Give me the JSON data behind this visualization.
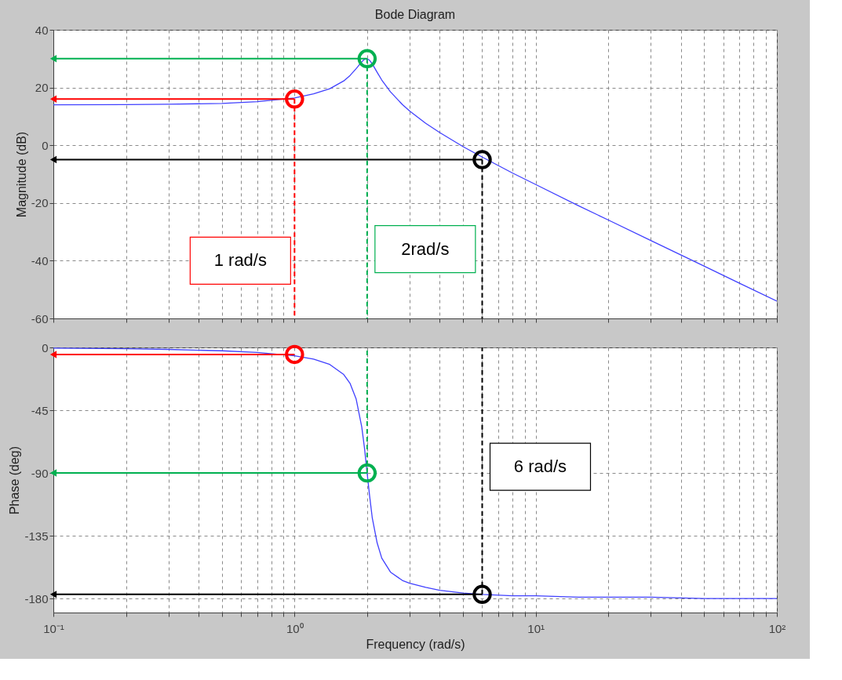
{
  "chart_data": [
    {
      "type": "line",
      "title": "Bode Diagram",
      "ylabel": "Magnitude (dB)",
      "log": "x",
      "grid": true,
      "tick_labels": "y",
      "xlim": [
        0.1,
        100
      ],
      "xticks": [
        {
          "value": 0.1,
          "label": null
        },
        {
          "value": 0.2,
          "label": null
        },
        {
          "value": 0.3,
          "label": null
        },
        {
          "value": 0.4,
          "label": null
        },
        {
          "value": 0.5,
          "label": null
        },
        {
          "value": 0.6,
          "label": null
        },
        {
          "value": 0.7,
          "label": null
        },
        {
          "value": 0.8,
          "label": null
        },
        {
          "value": 0.9,
          "label": null
        },
        {
          "value": 1,
          "label": null
        },
        {
          "value": 2,
          "label": null
        },
        {
          "value": 3,
          "label": null
        },
        {
          "value": 4,
          "label": null
        },
        {
          "value": 5,
          "label": null
        },
        {
          "value": 6,
          "label": null
        },
        {
          "value": 7,
          "label": null
        },
        {
          "value": 8,
          "label": null
        },
        {
          "value": 9,
          "label": null
        },
        {
          "value": 10,
          "label": null
        },
        {
          "value": 20,
          "label": null
        },
        {
          "value": 30,
          "label": null
        },
        {
          "value": 40,
          "label": null
        },
        {
          "value": 50,
          "label": null
        },
        {
          "value": 60,
          "label": null
        },
        {
          "value": 70,
          "label": null
        },
        {
          "value": 80,
          "label": null
        },
        {
          "value": 90,
          "label": null
        },
        {
          "value": 100,
          "label": null
        }
      ],
      "ylim": [
        -60,
        40
      ],
      "yticks": [
        -60,
        -40,
        -20,
        0,
        20,
        40
      ],
      "series": [
        {
          "color": "#4040ff",
          "x": [
            0.1,
            0.2,
            0.3,
            0.5,
            0.7,
            1,
            1.2,
            1.4,
            1.6,
            1.7,
            1.8,
            1.9,
            1.95,
            2,
            2.05,
            2.1,
            2.2,
            2.3,
            2.5,
            2.8,
            3,
            3.5,
            4,
            5,
            6,
            8,
            10,
            15,
            20,
            30,
            50,
            70,
            100
          ],
          "values": [
            14.0,
            14.1,
            14.2,
            14.5,
            15.1,
            16.4,
            17.8,
            19.6,
            22.3,
            24.2,
            26.5,
            28.9,
            29.8,
            30.0,
            29.4,
            28.2,
            25.3,
            22.6,
            18.5,
            14.1,
            11.9,
            7.6,
            4.4,
            -0.5,
            -4.1,
            -9.6,
            -13.6,
            -20.9,
            -25.9,
            -33.0,
            -41.9,
            -47.8,
            -54.0
          ]
        },
        {
          "type": "scatter",
          "marker": "circle",
          "x": [
            1,
            2,
            6
          ],
          "values": [
            16,
            30,
            -5
          ],
          "colors": [
            "#ff0000",
            "#00b050",
            "#000000"
          ]
        }
      ],
      "ref_lines": [
        {
          "axis": "x",
          "value": 1,
          "label": "1 rad/s",
          "color": "#ff0000",
          "line_style": "dashed"
        },
        {
          "axis": "x",
          "value": 2,
          "label": "2rad/s",
          "color": "#00b050",
          "line_style": "dashed"
        },
        {
          "axis": "x",
          "value": 6,
          "color": "#000000",
          "line_style": "dashed"
        }
      ]
    },
    {
      "type": "line",
      "xlabel": "Frequency  (rad/s)",
      "ylabel": "Phase (deg)",
      "log": "x",
      "grid": true,
      "xlim": [
        0.1,
        100
      ],
      "xticks": [
        {
          "value": 0.1,
          "label": "10⁻¹"
        },
        {
          "value": 0.2,
          "label": null
        },
        {
          "value": 0.3,
          "label": null
        },
        {
          "value": 0.4,
          "label": null
        },
        {
          "value": 0.5,
          "label": null
        },
        {
          "value": 0.6,
          "label": null
        },
        {
          "value": 0.7,
          "label": null
        },
        {
          "value": 0.8,
          "label": null
        },
        {
          "value": 0.9,
          "label": null
        },
        {
          "value": 1,
          "label": "10⁰"
        },
        {
          "value": 2,
          "label": null
        },
        {
          "value": 3,
          "label": null
        },
        {
          "value": 4,
          "label": null
        },
        {
          "value": 5,
          "label": null
        },
        {
          "value": 6,
          "label": null
        },
        {
          "value": 7,
          "label": null
        },
        {
          "value": 8,
          "label": null
        },
        {
          "value": 9,
          "label": null
        },
        {
          "value": 10,
          "label": "10¹"
        },
        {
          "value": 20,
          "label": null
        },
        {
          "value": 30,
          "label": null
        },
        {
          "value": 40,
          "label": null
        },
        {
          "value": 50,
          "label": null
        },
        {
          "value": 60,
          "label": null
        },
        {
          "value": 70,
          "label": null
        },
        {
          "value": 80,
          "label": null
        },
        {
          "value": 90,
          "label": null
        },
        {
          "value": 100,
          "label": "10²"
        }
      ],
      "ylim": [
        -190,
        0
      ],
      "yticks": [
        0,
        -45,
        -90,
        -135,
        -180
      ],
      "series": [
        {
          "color": "#4040ff",
          "x": [
            0.1,
            0.2,
            0.3,
            0.5,
            0.7,
            1,
            1.2,
            1.4,
            1.6,
            1.7,
            1.8,
            1.9,
            1.95,
            2,
            2.05,
            2.1,
            2.2,
            2.3,
            2.5,
            2.8,
            3,
            3.5,
            4,
            5,
            6,
            8,
            10,
            15,
            20,
            30,
            50,
            70,
            100
          ],
          "values": [
            -0.5,
            -0.9,
            -1.4,
            -2.4,
            -3.6,
            -6.0,
            -8.4,
            -12.2,
            -19.4,
            -25.8,
            -36.8,
            -57,
            -72,
            -90,
            -107,
            -122,
            -140,
            -151,
            -161,
            -167,
            -169,
            -172,
            -174,
            -176,
            -177,
            -178,
            -178,
            -179,
            -179,
            -179,
            -180,
            -180,
            -180
          ]
        },
        {
          "type": "scatter",
          "marker": "circle",
          "x": [
            1,
            2,
            6
          ],
          "values": [
            -5,
            -90,
            -177
          ],
          "colors": [
            "#ff0000",
            "#00b050",
            "#000000"
          ]
        }
      ],
      "ref_lines": [
        {
          "axis": "x",
          "value": 2,
          "color": "#00b050",
          "line_style": "dashed"
        },
        {
          "axis": "x",
          "value": 6,
          "label": "6 rad/s",
          "color": "#000000",
          "line_style": "dashed"
        }
      ]
    }
  ]
}
